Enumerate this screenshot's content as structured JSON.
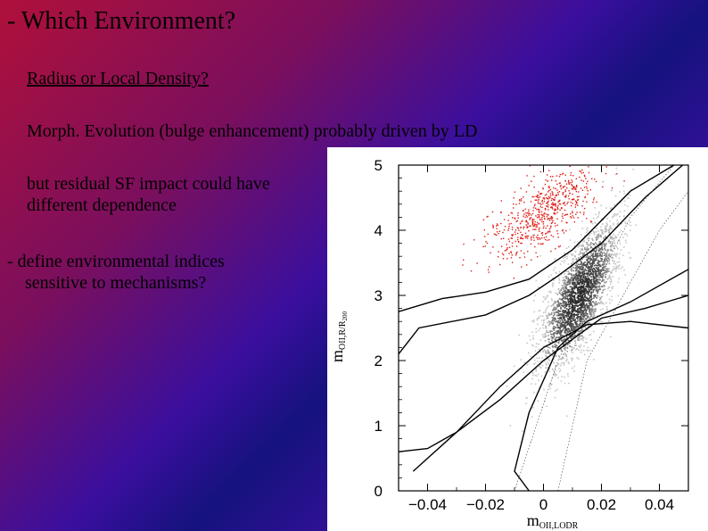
{
  "slide": {
    "title": "- Which Environment?",
    "bullet_1": "Radius or Local Density?",
    "bullet_2": "Morph. Evolution (bulge enhancement) probably driven by LD",
    "bullet_3": "but residual SF impact could have different dependence",
    "bullet_4_line1": "- define environmental indices",
    "bullet_4_line2": "sensitive to mechanisms?"
  },
  "chart_data": {
    "type": "scatter",
    "title": "",
    "xlabel_main": "m",
    "xlabel_sub": "OII,LODR",
    "ylabel_main": "m",
    "ylabel_sub": "OII,R/R",
    "ylabel_sub2": "200",
    "xlim": [
      -0.05,
      0.05
    ],
    "ylim": [
      0,
      5
    ],
    "x_ticks": [
      "−0.04",
      "−0.02",
      "0",
      "0.02",
      "0.04"
    ],
    "y_ticks": [
      "0",
      "1",
      "2",
      "3",
      "4",
      "5"
    ],
    "grid": false,
    "series": [
      {
        "style": "red-points",
        "center": [
          0.0,
          4.3
        ],
        "spread": [
          0.011,
          0.45
        ]
      },
      {
        "style": "gray-density",
        "center": [
          0.012,
          3.0
        ],
        "spread": [
          0.008,
          0.65
        ]
      }
    ],
    "contour_lines": [
      {
        "points": [
          [
            -0.05,
            2.1
          ],
          [
            -0.043,
            2.5
          ],
          [
            -0.02,
            2.7
          ],
          [
            -0.005,
            3.0
          ],
          [
            0.005,
            3.3
          ],
          [
            0.02,
            3.8
          ],
          [
            0.035,
            4.5
          ],
          [
            0.048,
            5.0
          ]
        ]
      },
      {
        "points": [
          [
            -0.05,
            2.75
          ],
          [
            -0.035,
            2.95
          ],
          [
            -0.02,
            3.05
          ],
          [
            -0.005,
            3.25
          ],
          [
            0.01,
            3.7
          ],
          [
            0.03,
            4.6
          ],
          [
            0.045,
            5.0
          ]
        ]
      },
      {
        "points": [
          [
            -0.05,
            0.6
          ],
          [
            -0.04,
            0.65
          ],
          [
            -0.03,
            0.9
          ],
          [
            -0.015,
            1.6
          ],
          [
            0.0,
            2.2
          ],
          [
            0.015,
            2.55
          ],
          [
            0.03,
            2.6
          ],
          [
            0.05,
            2.5
          ]
        ]
      },
      {
        "points": [
          [
            -0.045,
            0.3
          ],
          [
            -0.03,
            0.9
          ],
          [
            -0.015,
            1.4
          ],
          [
            0.0,
            2.0
          ],
          [
            0.02,
            2.65
          ],
          [
            0.035,
            2.8
          ],
          [
            0.05,
            3.0
          ]
        ]
      },
      {
        "points": [
          [
            -0.005,
            0.0
          ],
          [
            -0.01,
            0.3
          ],
          [
            -0.005,
            1.2
          ],
          [
            0.005,
            2.2
          ],
          [
            0.015,
            2.6
          ],
          [
            0.03,
            2.9
          ],
          [
            0.05,
            3.4
          ]
        ]
      }
    ]
  }
}
